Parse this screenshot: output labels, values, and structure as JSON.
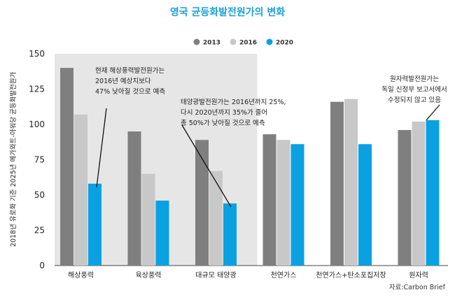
{
  "chart_data": {
    "type": "bar",
    "title": "영국 균등화발전원가의 변화",
    "ylabel": "2018년 유로화 기준 2025년 메가와트-아워당 균등화발전원가",
    "xlabel": "",
    "ylim": [
      0,
      150
    ],
    "yticks": [
      "0",
      "25",
      "50",
      "75",
      "100",
      "125",
      "150"
    ],
    "grid": false,
    "legend_position": "top-center",
    "categories": [
      "해상풍력",
      "육상풍력",
      "대규모 태양광",
      "천연가스",
      "천연가스+탄소포집저장",
      "원자력"
    ],
    "shaded_categories": [
      0,
      1,
      2
    ],
    "series": [
      {
        "name": "2013",
        "color": "#7f7f7f",
        "values": [
          140,
          95,
          89,
          93,
          116,
          96
        ]
      },
      {
        "name": "2016",
        "color": "#c8c8c8",
        "values": [
          107,
          65,
          67,
          89,
          118,
          102
        ]
      },
      {
        "name": "2020",
        "color": "#0aa1e2",
        "values": [
          58,
          46,
          44,
          86,
          86,
          103
        ]
      }
    ],
    "annotations": [
      {
        "lines": [
          "현재 해상풍력발전원가는",
          "2016년 예상치보다",
          "47% 낮아질 것으로 예측"
        ]
      },
      {
        "lines": [
          "태양광발전원가는 2016년까지 25%,",
          "다시 2020년까지 35%가 줄어",
          "총 50%가 낮아질 것으로 예측"
        ]
      },
      {
        "lines": [
          "원자력발전원가는",
          "독일 신정부 보고서에서",
          "수정되지 않고 있음"
        ]
      }
    ],
    "source": "자료:Carbon Brief"
  }
}
